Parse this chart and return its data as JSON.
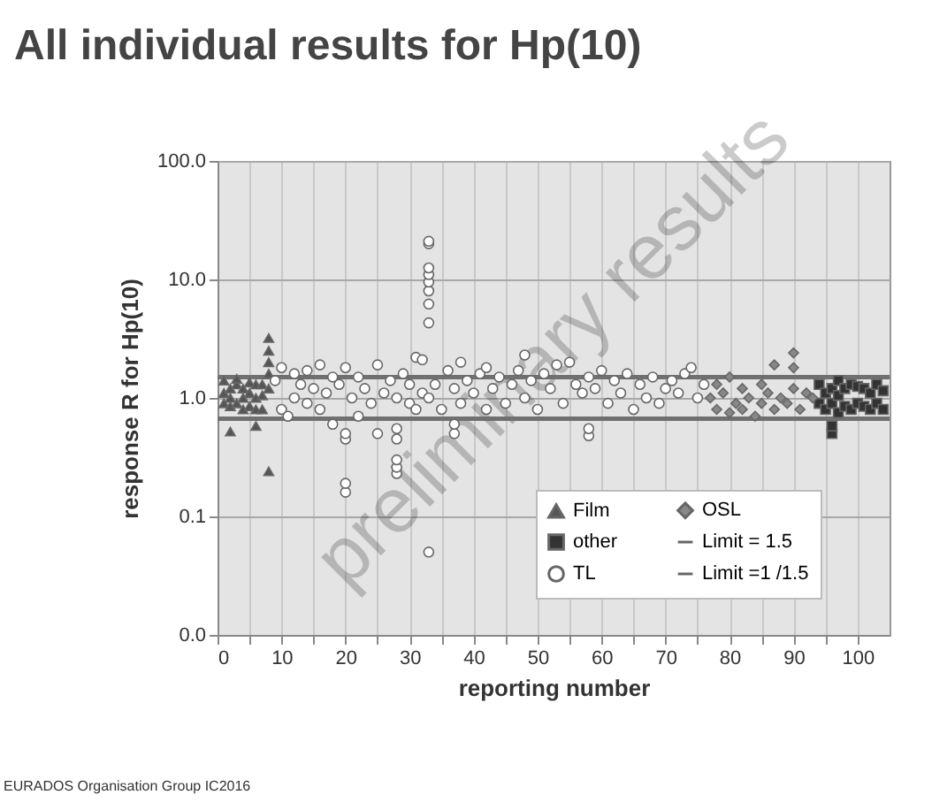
{
  "chart_data": {
    "type": "scatter",
    "title": "All individual results for Hp(10)",
    "xlabel": "reporting number",
    "ylabel": "response R for Hp(10)",
    "log": "y",
    "grid": true,
    "legend": "bottom right",
    "xlim": [
      0,
      105
    ],
    "ylim": [
      0.01,
      100
    ],
    "xticks": [
      0,
      {
        "value": 5,
        "label": null
      },
      10,
      {
        "value": 15,
        "label": null
      },
      20,
      {
        "value": 25,
        "label": null
      },
      30,
      {
        "value": 35,
        "label": null
      },
      40,
      {
        "value": 45,
        "label": null
      },
      50,
      {
        "value": 55,
        "label": null
      },
      60,
      {
        "value": 65,
        "label": null
      },
      70,
      {
        "value": 75,
        "label": null
      },
      80,
      {
        "value": 85,
        "label": null
      },
      90,
      {
        "value": 95,
        "label": null
      },
      100
    ],
    "yticks": [
      {
        "value": 0.01,
        "label": "0.0"
      },
      {
        "value": 0.1,
        "label": "0.1"
      },
      {
        "value": 1,
        "label": "1.0"
      },
      {
        "value": 10,
        "label": "10.0"
      },
      {
        "value": 100,
        "label": "100.0"
      }
    ],
    "series": [
      {
        "name": "Film",
        "color": "#555555",
        "marker": "triangle",
        "x": [
          1,
          1,
          1,
          2,
          2,
          2,
          2,
          3,
          3,
          3,
          4,
          4,
          4,
          5,
          5,
          5,
          6,
          6,
          6,
          6,
          7,
          7,
          7,
          8,
          8,
          8,
          8,
          8,
          8
        ],
        "values": [
          0.9,
          1.1,
          1.4,
          0.52,
          0.85,
          1.0,
          1.2,
          0.9,
          1.3,
          1.45,
          0.8,
          1.0,
          1.2,
          0.85,
          1.1,
          1.35,
          0.58,
          0.8,
          1.0,
          1.3,
          0.8,
          1.05,
          1.3,
          0.24,
          1.2,
          1.6,
          2.0,
          2.5,
          3.2
        ]
      },
      {
        "name": "other",
        "color": "#333333",
        "marker": "square",
        "x": [
          94,
          94,
          95,
          95,
          96,
          96,
          96,
          96,
          97,
          97,
          97,
          98,
          98,
          99,
          99,
          100,
          100,
          101,
          101,
          102,
          102,
          103,
          103,
          104,
          104
        ],
        "values": [
          0.9,
          1.3,
          0.8,
          1.1,
          0.5,
          0.58,
          0.9,
          1.2,
          0.75,
          1.05,
          1.4,
          0.85,
          1.2,
          0.8,
          1.3,
          0.9,
          1.25,
          0.85,
          1.2,
          0.8,
          1.1,
          0.9,
          1.3,
          0.8,
          1.15
        ]
      },
      {
        "name": "TL",
        "color": "#ffffff",
        "marker": "circle",
        "x": [
          9,
          10,
          10,
          11,
          12,
          12,
          13,
          14,
          14,
          15,
          16,
          16,
          17,
          18,
          18,
          19,
          20,
          20,
          20,
          20,
          20,
          21,
          22,
          22,
          23,
          24,
          25,
          25,
          26,
          27,
          28,
          28,
          28,
          28,
          28,
          28,
          29,
          30,
          30,
          31,
          31,
          32,
          32,
          33,
          33,
          33,
          33,
          33,
          33,
          33,
          33,
          33,
          33,
          34,
          35,
          36,
          37,
          37,
          37,
          38,
          38,
          39,
          40,
          41,
          42,
          42,
          43,
          44,
          45,
          46,
          47,
          48,
          48,
          49,
          50,
          51,
          52,
          53,
          54,
          55,
          56,
          57,
          58,
          58,
          58,
          59,
          60,
          61,
          62,
          63,
          64,
          65,
          66,
          67,
          68,
          69,
          70,
          71,
          72,
          73,
          74,
          75,
          76
        ],
        "values": [
          1.4,
          0.8,
          1.8,
          0.7,
          1.0,
          1.6,
          1.3,
          0.9,
          1.7,
          1.2,
          0.8,
          1.9,
          1.1,
          0.6,
          1.5,
          1.3,
          0.16,
          0.19,
          0.45,
          0.5,
          1.8,
          1.0,
          0.7,
          1.5,
          1.2,
          0.9,
          0.5,
          1.9,
          1.1,
          1.4,
          0.23,
          0.26,
          0.3,
          0.45,
          0.55,
          1.0,
          1.6,
          0.9,
          1.3,
          2.2,
          0.8,
          2.1,
          1.1,
          0.05,
          4.3,
          6.2,
          8,
          9.5,
          11,
          12.5,
          20,
          21,
          1.0,
          1.3,
          0.8,
          1.7,
          0.5,
          0.6,
          1.2,
          2.0,
          0.9,
          1.4,
          1.1,
          1.6,
          0.8,
          1.8,
          1.2,
          1.5,
          0.9,
          1.3,
          1.7,
          2.3,
          1.0,
          1.4,
          0.8,
          1.6,
          1.2,
          1.9,
          0.9,
          2.0,
          1.3,
          1.1,
          0.48,
          0.55,
          1.5,
          1.2,
          1.7,
          0.9,
          1.4,
          1.1,
          1.6,
          0.8,
          1.3,
          1.0,
          1.5,
          0.9,
          1.2,
          1.4,
          1.1,
          1.6,
          1.8,
          1.0,
          1.3
        ]
      },
      {
        "name": "OSL",
        "color": "#888888",
        "marker": "diamond",
        "x": [
          77,
          78,
          78,
          79,
          80,
          80,
          81,
          82,
          82,
          83,
          84,
          85,
          85,
          86,
          87,
          87,
          88,
          89,
          90,
          90,
          90,
          91,
          92,
          93
        ],
        "values": [
          1.0,
          0.8,
          1.3,
          1.1,
          0.75,
          1.5,
          0.9,
          0.8,
          1.2,
          1.0,
          0.7,
          0.9,
          1.3,
          1.1,
          1.9,
          0.8,
          1.0,
          0.9,
          2.4,
          1.8,
          1.2,
          0.8,
          1.1,
          1.0
        ]
      }
    ],
    "ref_lines": [
      {
        "axis": "y",
        "value": 1.5,
        "label": "Limit = 1.5",
        "color": "#707070"
      },
      {
        "axis": "y",
        "value": 0.667,
        "label": "Limit =1 /1.5",
        "color": "#707070"
      }
    ],
    "annotations": [
      "preliminary results",
      "EURADOS Organisation Group IC2016"
    ]
  }
}
